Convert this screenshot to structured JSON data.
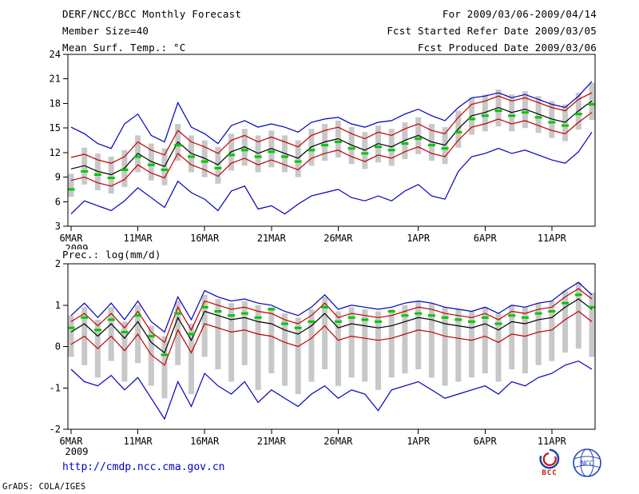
{
  "header": {
    "title": "DERF/NCC/BCC Monthly Forecast",
    "member_size": "Member Size=40",
    "for_range": "For 2009/03/06-2009/04/14",
    "refer_date": "Fcst Started Refer Date 2009/03/05",
    "produced_date": "Fcst Produced Date 2009/03/06"
  },
  "footer": {
    "url": "http://cmdp.ncc.cma.gov.cn",
    "bcc_label": "BCC",
    "ncc_label": "NCC",
    "grads_credit": "GrADS: COLA/IGES"
  },
  "colors": {
    "bar": "#c8c8c8",
    "frame": "#000000",
    "max_min_line": "#0000c0",
    "quartile_line": "#c00000",
    "mean_line": "#000000",
    "obs_dash": "#00c800",
    "url_text": "#0000cc",
    "bcc_red": "#cc1111",
    "bcc_blue": "#1a3fb4",
    "ncc_blue": "#2244bb"
  },
  "chart_data": [
    {
      "type": "line",
      "title": "Mean Surf. Temp.: °C",
      "ylabel": "°C",
      "ylim": [
        3,
        24
      ],
      "yticks": [
        3,
        6,
        9,
        12,
        15,
        18,
        21,
        24
      ],
      "n_days": 40,
      "year": "2009",
      "xticks": [
        {
          "day": 0,
          "label": "6MAR"
        },
        {
          "day": 5,
          "label": "11MAR"
        },
        {
          "day": 10,
          "label": "16MAR"
        },
        {
          "day": 15,
          "label": "21MAR"
        },
        {
          "day": 20,
          "label": "26MAR"
        },
        {
          "day": 26,
          "label": "1APR"
        },
        {
          "day": 31,
          "label": "6APR"
        },
        {
          "day": 36,
          "label": "11APR"
        }
      ],
      "bars": {
        "name": "ensemble-spread",
        "low": [
          6.6,
          8.1,
          7.4,
          7.0,
          7.8,
          9.6,
          8.6,
          8.0,
          11.0,
          9.6,
          9.0,
          8.2,
          9.8,
          10.4,
          9.6,
          10.2,
          9.6,
          9.0,
          10.4,
          11.0,
          11.4,
          10.6,
          10.0,
          10.8,
          10.4,
          11.2,
          11.8,
          11.0,
          10.6,
          12.6,
          14.2,
          14.6,
          15.2,
          14.6,
          15.0,
          14.4,
          13.8,
          13.4,
          14.8,
          16.0
        ],
        "high": [
          9.4,
          12.6,
          11.9,
          11.5,
          12.3,
          14.1,
          13.1,
          12.5,
          15.5,
          14.1,
          13.5,
          12.7,
          14.3,
          14.9,
          14.1,
          14.7,
          14.1,
          13.5,
          14.9,
          15.5,
          15.9,
          15.1,
          14.5,
          15.3,
          14.9,
          15.7,
          16.3,
          15.5,
          15.1,
          17.1,
          18.7,
          19.1,
          19.7,
          19.1,
          19.5,
          18.9,
          18.3,
          17.9,
          19.3,
          20.5
        ]
      },
      "series": [
        {
          "name": "ensemble-max",
          "style": "line",
          "color": "#0000c0",
          "values": [
            15.1,
            14.3,
            13.1,
            12.5,
            15.5,
            16.7,
            14.1,
            13.3,
            18.1,
            15.1,
            14.3,
            13.1,
            15.3,
            15.9,
            15.1,
            15.5,
            15.1,
            14.5,
            15.7,
            16.1,
            16.3,
            15.5,
            15.1,
            15.7,
            15.9,
            16.7,
            17.3,
            16.5,
            15.9,
            17.5,
            18.7,
            18.9,
            19.3,
            18.7,
            19.1,
            18.5,
            17.9,
            17.5,
            18.9,
            20.7
          ]
        },
        {
          "name": "ensemble-min",
          "style": "line",
          "color": "#0000c0",
          "values": [
            4.5,
            6.1,
            5.5,
            4.9,
            6.1,
            7.7,
            6.5,
            5.3,
            8.5,
            7.1,
            6.3,
            4.9,
            7.3,
            7.9,
            5.1,
            5.5,
            4.5,
            5.7,
            6.7,
            7.1,
            7.5,
            6.5,
            6.1,
            6.7,
            6.1,
            7.3,
            8.1,
            6.7,
            6.3,
            9.7,
            11.5,
            11.9,
            12.5,
            11.9,
            12.3,
            11.7,
            11.1,
            10.7,
            12.1,
            14.5
          ]
        },
        {
          "name": "upper-quartile",
          "style": "line",
          "color": "#c00000",
          "values": [
            11.4,
            11.8,
            11.1,
            10.7,
            11.5,
            13.3,
            12.3,
            11.7,
            14.7,
            13.3,
            12.7,
            11.9,
            13.5,
            14.1,
            13.3,
            13.9,
            13.3,
            12.7,
            14.1,
            14.7,
            15.1,
            14.3,
            13.7,
            14.5,
            14.1,
            14.9,
            15.5,
            14.7,
            14.3,
            16.3,
            17.9,
            18.3,
            18.9,
            18.3,
            18.7,
            18.1,
            17.5,
            17.1,
            18.5,
            19.3
          ]
        },
        {
          "name": "lower-quartile",
          "style": "line",
          "color": "#c00000",
          "values": [
            8.6,
            9.0,
            8.3,
            7.9,
            8.7,
            10.5,
            9.5,
            8.9,
            11.9,
            10.5,
            9.9,
            9.1,
            10.7,
            11.3,
            10.5,
            11.1,
            10.5,
            9.9,
            11.3,
            11.9,
            12.3,
            11.5,
            10.9,
            11.7,
            11.3,
            12.1,
            12.7,
            11.9,
            11.5,
            13.5,
            15.1,
            15.5,
            16.1,
            15.5,
            15.9,
            15.3,
            14.7,
            14.3,
            15.7,
            16.9
          ]
        },
        {
          "name": "ensemble-mean",
          "style": "line",
          "color": "#000000",
          "values": [
            10.0,
            10.4,
            9.7,
            9.3,
            10.1,
            11.9,
            10.9,
            10.3,
            13.3,
            11.9,
            11.3,
            10.5,
            12.1,
            12.7,
            11.9,
            12.5,
            11.9,
            11.3,
            12.7,
            13.3,
            13.7,
            12.9,
            12.3,
            13.1,
            12.7,
            13.5,
            14.1,
            13.3,
            12.9,
            14.9,
            16.5,
            16.9,
            17.5,
            16.9,
            17.3,
            16.7,
            16.1,
            15.7,
            17.1,
            18.3
          ]
        },
        {
          "name": "observation",
          "style": "dash",
          "color": "#00c800",
          "values": [
            7.5,
            9.7,
            9.3,
            8.9,
            9.9,
            11.5,
            10.5,
            9.9,
            12.9,
            11.5,
            10.9,
            10.1,
            11.7,
            12.3,
            11.5,
            12.1,
            11.5,
            10.9,
            12.3,
            12.9,
            13.3,
            12.5,
            11.9,
            12.7,
            12.3,
            13.1,
            13.7,
            12.9,
            12.5,
            14.5,
            16.1,
            16.5,
            17.1,
            16.5,
            16.9,
            16.3,
            15.7,
            15.3,
            16.7,
            17.9
          ]
        }
      ]
    },
    {
      "type": "line",
      "title": "Prec.: log(mm/d)",
      "ylabel": "log(mm/d)",
      "ylim": [
        -2,
        2
      ],
      "yticks": [
        -2,
        -1,
        0,
        1,
        2
      ],
      "n_days": 40,
      "year": "2009",
      "xticks": [
        {
          "day": 0,
          "label": "6MAR"
        },
        {
          "day": 5,
          "label": "11MAR"
        },
        {
          "day": 10,
          "label": "16MAR"
        },
        {
          "day": 15,
          "label": "21MAR"
        },
        {
          "day": 20,
          "label": "26MAR"
        },
        {
          "day": 26,
          "label": "1APR"
        },
        {
          "day": 31,
          "label": "6APR"
        },
        {
          "day": 36,
          "label": "11APR"
        }
      ],
      "bars": {
        "name": "ensemble-spread",
        "low": [
          -0.25,
          -0.45,
          -0.75,
          -0.35,
          -0.85,
          -0.4,
          -0.95,
          -1.25,
          -0.45,
          -1.15,
          -0.25,
          -0.55,
          -0.85,
          -0.45,
          -1.05,
          -0.65,
          -0.95,
          -1.15,
          -0.85,
          -0.55,
          -0.95,
          -0.75,
          -0.85,
          -1.05,
          -0.75,
          -0.65,
          -0.55,
          -0.75,
          -0.95,
          -0.85,
          -0.75,
          -0.65,
          -0.85,
          -0.55,
          -0.65,
          -0.45,
          -0.35,
          -0.15,
          -0.05,
          -0.25
        ],
        "high": [
          0.75,
          0.95,
          0.65,
          0.95,
          0.6,
          1.0,
          0.5,
          0.25,
          1.1,
          0.55,
          1.25,
          1.15,
          1.05,
          1.1,
          1.0,
          0.95,
          0.8,
          0.7,
          0.9,
          1.2,
          0.85,
          0.95,
          0.9,
          0.85,
          0.9,
          1.0,
          1.1,
          1.05,
          0.95,
          0.9,
          0.85,
          0.95,
          0.8,
          1.0,
          0.95,
          1.05,
          1.1,
          1.35,
          1.55,
          1.3
        ]
      },
      "series": [
        {
          "name": "ensemble-max",
          "style": "line",
          "color": "#0000c0",
          "values": [
            0.75,
            1.05,
            0.7,
            1.05,
            0.65,
            1.1,
            0.6,
            0.35,
            1.2,
            0.65,
            1.35,
            1.2,
            1.1,
            1.15,
            1.05,
            1.0,
            0.85,
            0.75,
            0.95,
            1.25,
            0.9,
            1.0,
            0.95,
            0.9,
            0.95,
            1.05,
            1.1,
            1.05,
            0.95,
            0.9,
            0.85,
            0.95,
            0.8,
            1.0,
            0.95,
            1.05,
            1.1,
            1.35,
            1.55,
            1.25
          ]
        },
        {
          "name": "ensemble-min",
          "style": "line",
          "color": "#0000c0",
          "values": [
            -0.55,
            -0.85,
            -0.95,
            -0.7,
            -1.05,
            -0.75,
            -1.25,
            -1.75,
            -0.85,
            -1.45,
            -0.65,
            -0.95,
            -1.15,
            -0.85,
            -1.35,
            -1.05,
            -1.25,
            -1.45,
            -1.15,
            -0.95,
            -1.25,
            -1.05,
            -1.15,
            -1.55,
            -1.05,
            -0.95,
            -0.85,
            -1.05,
            -1.25,
            -1.15,
            -1.05,
            -0.95,
            -1.15,
            -0.85,
            -0.95,
            -0.75,
            -0.65,
            -0.45,
            -0.35,
            -0.55
          ]
        },
        {
          "name": "upper-quartile",
          "style": "line",
          "color": "#c00000",
          "values": [
            0.6,
            0.8,
            0.5,
            0.8,
            0.45,
            0.85,
            0.35,
            0.1,
            0.95,
            0.4,
            1.1,
            1.0,
            0.9,
            0.95,
            0.85,
            0.8,
            0.65,
            0.55,
            0.75,
            1.05,
            0.7,
            0.8,
            0.75,
            0.7,
            0.75,
            0.85,
            0.95,
            0.9,
            0.8,
            0.75,
            0.7,
            0.8,
            0.65,
            0.85,
            0.8,
            0.9,
            0.95,
            1.2,
            1.4,
            1.15
          ]
        },
        {
          "name": "lower-quartile",
          "style": "line",
          "color": "#c00000",
          "values": [
            0.05,
            0.25,
            -0.05,
            0.25,
            -0.1,
            0.3,
            -0.2,
            -0.45,
            0.4,
            -0.15,
            0.55,
            0.45,
            0.35,
            0.4,
            0.3,
            0.25,
            0.1,
            0.0,
            0.2,
            0.5,
            0.15,
            0.25,
            0.2,
            0.15,
            0.2,
            0.3,
            0.4,
            0.35,
            0.25,
            0.2,
            0.15,
            0.25,
            0.1,
            0.3,
            0.25,
            0.35,
            0.4,
            0.65,
            0.85,
            0.6
          ]
        },
        {
          "name": "ensemble-mean",
          "style": "line",
          "color": "#000000",
          "values": [
            0.35,
            0.55,
            0.25,
            0.55,
            0.2,
            0.6,
            0.1,
            -0.15,
            0.7,
            0.15,
            0.85,
            0.75,
            0.65,
            0.7,
            0.6,
            0.55,
            0.4,
            0.3,
            0.5,
            0.8,
            0.45,
            0.55,
            0.5,
            0.45,
            0.5,
            0.6,
            0.7,
            0.65,
            0.55,
            0.5,
            0.45,
            0.55,
            0.4,
            0.6,
            0.55,
            0.65,
            0.7,
            0.95,
            1.15,
            0.9
          ]
        },
        {
          "name": "observation",
          "style": "dash",
          "color": "#00c800",
          "values": [
            0.45,
            0.7,
            0.4,
            0.65,
            0.35,
            0.75,
            0.25,
            -0.2,
            0.8,
            0.3,
            0.95,
            0.85,
            0.75,
            0.8,
            0.7,
            0.9,
            0.55,
            0.45,
            0.6,
            0.95,
            0.6,
            0.7,
            0.65,
            0.6,
            0.85,
            0.75,
            0.8,
            0.75,
            0.7,
            0.65,
            0.6,
            0.7,
            0.55,
            0.75,
            0.7,
            0.8,
            0.85,
            1.05,
            1.25,
            0.95
          ]
        }
      ]
    }
  ]
}
